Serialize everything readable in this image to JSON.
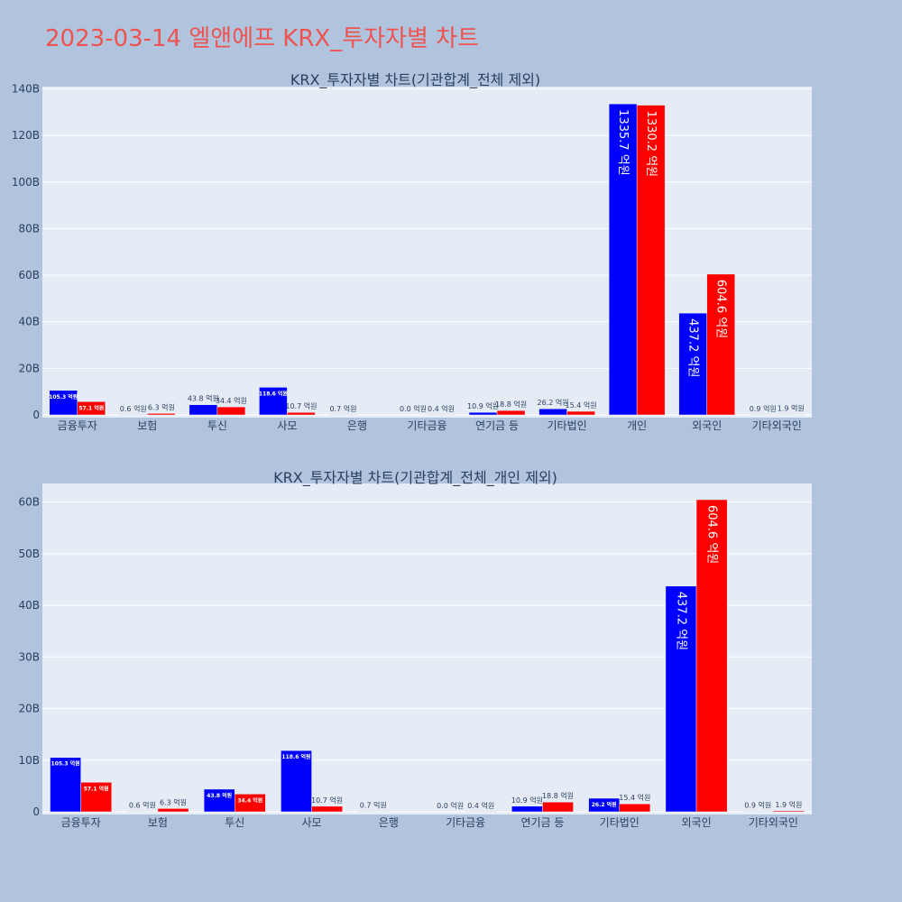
{
  "title": "2023-03-14 엘앤에프 KRX_투자자별 차트",
  "colors": {
    "buy": "#0000ff",
    "sell": "#ff0000",
    "plot_bg": "#e5ecf6",
    "page_bg": "#b0c4de",
    "title": "#ef5350",
    "label_out": "#2a3f5f"
  },
  "chart_data": [
    {
      "type": "bar",
      "title": "KRX_투자자별 차트(기관합계_전체 제외)",
      "categories": [
        "금융투자",
        "보험",
        "투신",
        "사모",
        "은행",
        "기타금융",
        "연기금 등",
        "기타법인",
        "개인",
        "외국인",
        "기타외국인"
      ],
      "series": [
        {
          "color": "#0000ff",
          "values": [
            10530000000,
            60000000,
            4380000000,
            11860000000,
            70000000,
            0,
            1090000000,
            2620000000,
            133570000000,
            43720000000,
            90000000
          ],
          "labels": [
            "105.3 억원",
            "0.6 억원",
            "43.8 억원",
            "118.6 억원",
            "0.7 억원",
            "0.0 억원",
            "10.9 억원",
            "26.2 억원",
            "1335.7 억원",
            "437.2 억원",
            "0.9 억원"
          ]
        },
        {
          "color": "#ff0000",
          "values": [
            5710000000,
            630000000,
            3440000000,
            1070000000,
            0,
            40000000,
            1880000000,
            1540000000,
            133020000000,
            60460000000,
            190000000
          ],
          "labels": [
            "57.1 억원",
            "6.3 억원",
            "34.4 억원",
            "10.7 억원",
            "",
            "0.4 억원",
            "18.8 억원",
            "15.4 억원",
            "1330.2 억원",
            "604.6 억원",
            "1.9 억원"
          ]
        }
      ],
      "yticks": [
        0,
        20000000000,
        40000000000,
        60000000000,
        80000000000,
        100000000000,
        120000000000,
        140000000000
      ],
      "ytick_labels": [
        "0",
        "20B",
        "40B",
        "60B",
        "80B",
        "100B",
        "120B",
        "140B"
      ],
      "ylim": [
        0,
        141000000000
      ],
      "grid": true,
      "xlabel": "",
      "ylabel": ""
    },
    {
      "type": "bar",
      "title": "KRX_투자자별 차트(기관합계_전체_개인 제외)",
      "categories": [
        "금융투자",
        "보험",
        "투신",
        "사모",
        "은행",
        "기타금융",
        "연기금 등",
        "기타법인",
        "외국인",
        "기타외국인"
      ],
      "series": [
        {
          "color": "#0000ff",
          "values": [
            10530000000,
            60000000,
            4380000000,
            11860000000,
            70000000,
            0,
            1090000000,
            2620000000,
            43720000000,
            90000000
          ],
          "labels": [
            "105.3 억원",
            "0.6 억원",
            "43.8 억원",
            "118.6 억원",
            "0.7 억원",
            "0.0 억원",
            "10.9 억원",
            "26.2 억원",
            "437.2 억원",
            "0.9 억원"
          ]
        },
        {
          "color": "#ff0000",
          "values": [
            5710000000,
            630000000,
            3440000000,
            1070000000,
            0,
            40000000,
            1880000000,
            1540000000,
            60460000000,
            190000000
          ],
          "labels": [
            "57.1 억원",
            "6.3 억원",
            "34.4 억원",
            "10.7 억원",
            "",
            "0.4 억원",
            "18.8 억원",
            "15.4 억원",
            "604.6 억원",
            "1.9 억원"
          ]
        }
      ],
      "yticks": [
        0,
        10000000000,
        20000000000,
        30000000000,
        40000000000,
        50000000000,
        60000000000
      ],
      "ytick_labels": [
        "0",
        "10B",
        "20B",
        "30B",
        "40B",
        "50B",
        "60B"
      ],
      "ylim": [
        0,
        63600000000
      ],
      "grid": true,
      "xlabel": "",
      "ylabel": ""
    }
  ]
}
